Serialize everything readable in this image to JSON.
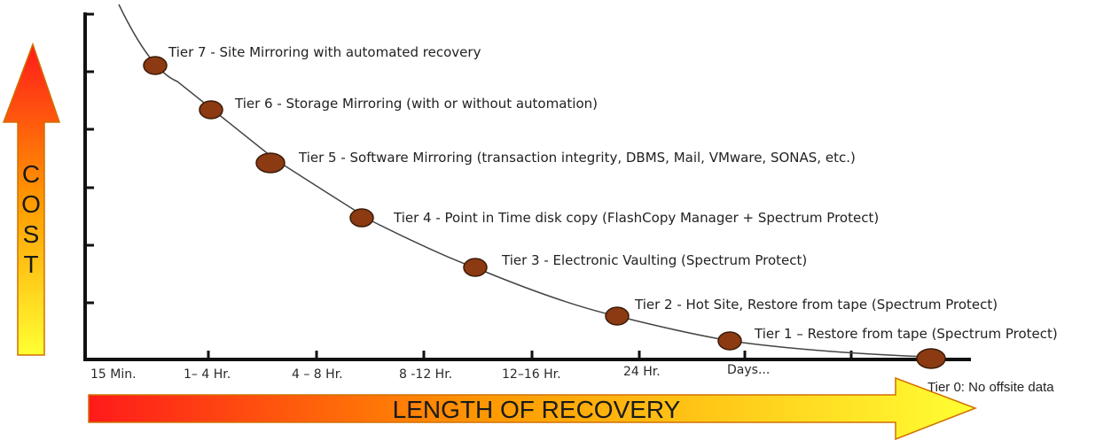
{
  "cost_label": [
    "C",
    "O",
    "S",
    "T"
  ],
  "recovery_label": "LENGTH OF RECOVERY",
  "time_scale": [
    "15 Min.",
    "1– 4 Hr.",
    "4 – 8 Hr.",
    "8 -12 Hr.",
    "12–16 Hr.",
    "24 Hr.",
    "Days..."
  ],
  "tiers": [
    {
      "id": 7,
      "label": "Tier 7 - Site Mirroring with automated recovery"
    },
    {
      "id": 6,
      "label": "Tier 6 - Storage Mirroring (with or without automation)"
    },
    {
      "id": 5,
      "label": "Tier 5 - Software Mirroring (transaction integrity, DBMS, Mail, VMware, SONAS, etc.)"
    },
    {
      "id": 4,
      "label": "Tier 4 - Point in Time disk copy (FlashCopy Manager + Spectrum Protect)"
    },
    {
      "id": 3,
      "label": "Tier 3 - Electronic Vaulting (Spectrum Protect)"
    },
    {
      "id": 2,
      "label": "Tier 2 - Hot Site, Restore from tape (Spectrum Protect)"
    },
    {
      "id": 1,
      "label": "Tier 1 – Restore from tape (Spectrum Protect)"
    },
    {
      "id": 0,
      "label": "Tier 0: No offsite data"
    }
  ],
  "colors": {
    "dot_fill": "#8b3a12",
    "dot_stroke": "#3a1a08",
    "axis": "#111111",
    "gradient_start": "#ff1a1a",
    "gradient_mid": "#ff9900",
    "gradient_end": "#ffff33"
  }
}
